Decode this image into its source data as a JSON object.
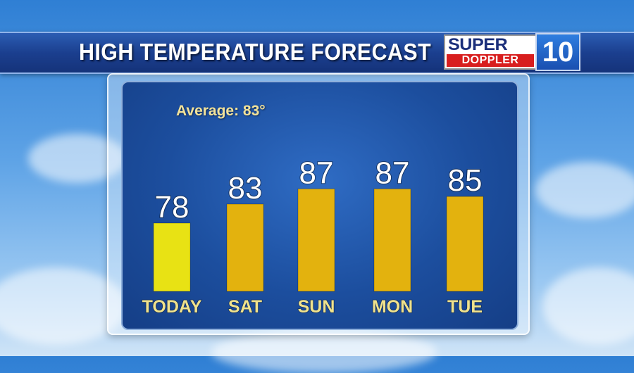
{
  "header": {
    "title": "HIGH TEMPERATURE FORECAST"
  },
  "logo": {
    "line1": "SUPER",
    "line2": "DOPPLER",
    "badge": "10"
  },
  "average_label": "Average: 83°",
  "colors": {
    "today_bar": "#e8e214",
    "bar": "#e3b20e",
    "day_label": "#f0e28c",
    "value_label": "#ffffff"
  },
  "chart_data": {
    "type": "bar",
    "categories": [
      "TODAY",
      "SAT",
      "SUN",
      "MON",
      "TUE"
    ],
    "values": [
      78,
      83,
      87,
      87,
      85
    ],
    "title": "HIGH TEMPERATURE FORECAST",
    "annotations": [
      "Average: 83°"
    ]
  }
}
